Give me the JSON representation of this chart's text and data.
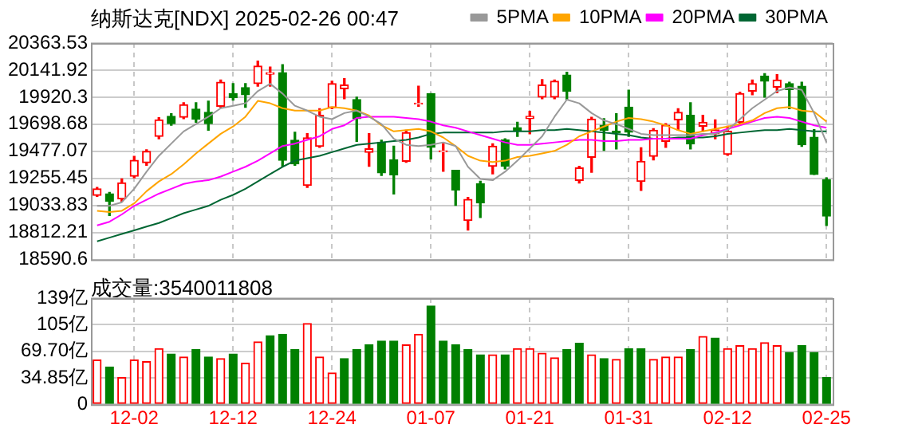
{
  "chart_data": [
    {
      "type": "candlestick",
      "title": "纳斯达克[NDX] 2025-02-26 00:47",
      "categories": [
        null,
        null,
        null,
        null,
        null,
        null,
        null,
        null,
        null,
        null,
        null,
        null,
        null,
        null,
        null,
        null,
        null,
        null,
        null,
        null,
        null,
        null,
        null,
        null,
        null,
        null,
        null,
        null,
        null,
        null,
        null,
        null,
        null,
        null,
        null,
        null,
        null,
        null,
        null,
        null,
        null,
        null,
        null,
        null,
        null,
        null,
        null,
        null,
        null,
        null,
        null,
        null,
        null,
        null,
        null,
        null,
        null,
        null,
        null,
        null
      ],
      "ohlc": [
        [
          19116,
          19181,
          19108,
          19169
        ],
        [
          19128,
          19140,
          18952,
          19067
        ],
        [
          19087,
          19251,
          19067,
          19218
        ],
        [
          19272,
          19436,
          19259,
          19403
        ],
        [
          19383,
          19489,
          19362,
          19477
        ],
        [
          19600,
          19752,
          19579,
          19735
        ],
        [
          19764,
          19785,
          19690,
          19703
        ],
        [
          19756,
          19875,
          19744,
          19859
        ],
        [
          19822,
          19875,
          19715,
          19740
        ],
        [
          19797,
          19887,
          19649,
          19703
        ],
        [
          19846,
          20060,
          19838,
          20043
        ],
        [
          19949,
          20031,
          19896,
          19916
        ],
        [
          19998,
          20031,
          19838,
          19941
        ],
        [
          20031,
          20216,
          20010,
          20175
        ],
        [
          20109,
          20166,
          20010,
          20121
        ],
        [
          20121,
          20187,
          19354,
          19403
        ],
        [
          19567,
          19633,
          19362,
          19374
        ],
        [
          19198,
          19621,
          19181,
          19588
        ],
        [
          19518,
          19826,
          19510,
          19772
        ],
        [
          19834,
          20051,
          19826,
          20031
        ],
        [
          19990,
          20072,
          19908,
          20019
        ],
        [
          19900,
          19920,
          19559,
          19744
        ],
        [
          19469,
          19621,
          19354,
          19497
        ],
        [
          19551,
          19567,
          19280,
          19300
        ],
        [
          19407,
          19518,
          19128,
          19284
        ],
        [
          19395,
          19649,
          19387,
          19629
        ],
        [
          19863,
          20010,
          19846,
          19871
        ],
        [
          19949,
          19949,
          19415,
          19510
        ],
        [
          19473,
          19538,
          19313,
          19481
        ],
        [
          19321,
          19321,
          19034,
          19161
        ],
        [
          18911,
          19099,
          18833,
          19083
        ],
        [
          19210,
          19231,
          18935,
          19054
        ],
        [
          19354,
          19538,
          19292,
          19518
        ],
        [
          19571,
          19579,
          19333,
          19354
        ],
        [
          19670,
          19715,
          19600,
          19641
        ],
        [
          19744,
          19805,
          19621,
          19764
        ],
        [
          19920,
          20064,
          19908,
          20019
        ],
        [
          19920,
          20060,
          19908,
          20051
        ],
        [
          20101,
          20125,
          19900,
          19970
        ],
        [
          19239,
          19354,
          19218,
          19341
        ],
        [
          19428,
          19756,
          19305,
          19740
        ],
        [
          19690,
          19744,
          19485,
          19649
        ],
        [
          19641,
          19785,
          19497,
          19629
        ],
        [
          19838,
          19978,
          19600,
          19633
        ],
        [
          19231,
          19506,
          19157,
          19395
        ],
        [
          19436,
          19662,
          19407,
          19649
        ],
        [
          19559,
          19703,
          19510,
          19690
        ],
        [
          19735,
          19826,
          19649,
          19797
        ],
        [
          19772,
          19875,
          19497,
          19538
        ],
        [
          19682,
          19772,
          19641,
          19715
        ],
        [
          19621,
          19735,
          19579,
          19653
        ],
        [
          19452,
          19682,
          19444,
          19641
        ],
        [
          19715,
          19961,
          19703,
          19949
        ],
        [
          19970,
          20060,
          19941,
          20031
        ],
        [
          20093,
          20113,
          19920,
          20051
        ],
        [
          20002,
          20105,
          19957,
          20060
        ],
        [
          20031,
          20043,
          19826,
          19982
        ],
        [
          20010,
          20043,
          19518,
          19530
        ],
        [
          19592,
          19654,
          19288,
          19288
        ],
        [
          19243,
          19259,
          18870,
          18946
        ]
      ],
      "colors": [
        "#ff0000",
        "#008000",
        "#ff0000",
        "#ff0000",
        "#ff0000",
        "#ff0000",
        "#008000",
        "#ff0000",
        "#008000",
        "#008000",
        "#ff0000",
        "#008000",
        "#008000",
        "#ff0000",
        "#ff0000",
        "#008000",
        "#008000",
        "#ff0000",
        "#ff0000",
        "#ff0000",
        "#ff0000",
        "#008000",
        "#ff0000",
        "#008000",
        "#008000",
        "#ff0000",
        "#ff0000",
        "#008000",
        "#ff0000",
        "#008000",
        "#ff0000",
        "#008000",
        "#ff0000",
        "#008000",
        "#008000",
        "#ff0000",
        "#ff0000",
        "#ff0000",
        "#008000",
        "#ff0000",
        "#ff0000",
        "#008000",
        "#008000",
        "#008000",
        "#ff0000",
        "#ff0000",
        "#ff0000",
        "#ff0000",
        "#008000",
        "#ff0000",
        "#ff0000",
        "#ff0000",
        "#ff0000",
        "#ff0000",
        "#008000",
        "#ff0000",
        "#008000",
        "#008000",
        "#008000",
        "#008000"
      ],
      "series": [
        {
          "type": "line",
          "name": "5PMA",
          "color": "#999999",
          "values": [
            19030,
            19030,
            19060,
            19170,
            19310,
            19440,
            19540,
            19640,
            19700,
            19760,
            19830,
            19850,
            19870,
            19970,
            20030,
            19950,
            19850,
            19810,
            19760,
            19740,
            19790,
            19810,
            19760,
            19700,
            19580,
            19530,
            19520,
            19530,
            19550,
            19520,
            19350,
            19250,
            19240,
            19310,
            19400,
            19500,
            19600,
            19760,
            19900,
            19870,
            19790,
            19730,
            19700,
            19660,
            19620,
            19610,
            19610,
            19610,
            19610,
            19620,
            19620,
            19650,
            19740,
            19830,
            19900,
            19970,
            20000,
            19980,
            19790,
            19550
          ]
        },
        {
          "type": "line",
          "name": "10PMA",
          "color": "#ffa500",
          "values": [
            18990,
            18980,
            18990,
            19050,
            19150,
            19230,
            19290,
            19370,
            19460,
            19540,
            19620,
            19680,
            19760,
            19890,
            19870,
            19830,
            19810,
            19810,
            19810,
            19840,
            19830,
            19810,
            19770,
            19690,
            19640,
            19650,
            19660,
            19640,
            19590,
            19520,
            19440,
            19400,
            19390,
            19400,
            19430,
            19440,
            19460,
            19480,
            19530,
            19600,
            19640,
            19680,
            19720,
            19750,
            19740,
            19720,
            19690,
            19650,
            19620,
            19640,
            19660,
            19680,
            19700,
            19730,
            19790,
            19830,
            19840,
            19810,
            19800,
            19720
          ]
        },
        {
          "type": "line",
          "name": "20PMA",
          "color": "#ff00ff",
          "values": [
            18870,
            18900,
            18960,
            19030,
            19080,
            19130,
            19170,
            19210,
            19230,
            19240,
            19270,
            19310,
            19350,
            19400,
            19460,
            19520,
            19540,
            19570,
            19600,
            19660,
            19690,
            19750,
            19760,
            19760,
            19760,
            19750,
            19740,
            19720,
            19690,
            19670,
            19640,
            19610,
            19580,
            19550,
            19530,
            19530,
            19540,
            19550,
            19560,
            19570,
            19570,
            19560,
            19560,
            19570,
            19570,
            19580,
            19580,
            19580,
            19580,
            19610,
            19630,
            19660,
            19690,
            19720,
            19750,
            19760,
            19750,
            19720,
            19690,
            19670
          ]
        },
        {
          "type": "line",
          "name": "30PMA",
          "color": "#006633",
          "values": [
            18740,
            18770,
            18800,
            18830,
            18860,
            18890,
            18930,
            18970,
            19000,
            19030,
            19080,
            19120,
            19170,
            19230,
            19290,
            19350,
            19400,
            19420,
            19440,
            19470,
            19500,
            19530,
            19540,
            19550,
            19560,
            19570,
            19590,
            19620,
            19630,
            19630,
            19630,
            19630,
            19630,
            19640,
            19640,
            19640,
            19650,
            19650,
            19660,
            19650,
            19640,
            19630,
            19620,
            19610,
            19590,
            19580,
            19580,
            19590,
            19590,
            19590,
            19600,
            19620,
            19630,
            19640,
            19650,
            19650,
            19660,
            19650,
            19640,
            19640
          ]
        }
      ],
      "ylim": [
        18590.6,
        20363.53
      ],
      "yticks": [
        18590.6,
        18812.21,
        19033.83,
        19255.45,
        19477.07,
        19698.68,
        19920.3,
        20141.92,
        20363.53
      ],
      "grid": true,
      "legend": "top right",
      "tick_labels": "y"
    },
    {
      "type": "bar",
      "title": "成交量:3540011808",
      "categories": [
        null,
        null,
        null,
        "12-02",
        null,
        null,
        null,
        null,
        null,
        null,
        null,
        "12-12",
        null,
        null,
        null,
        null,
        null,
        null,
        null,
        "12-24",
        null,
        null,
        null,
        null,
        null,
        null,
        null,
        "01-07",
        null,
        null,
        null,
        null,
        null,
        null,
        null,
        "01-21",
        null,
        null,
        null,
        null,
        null,
        null,
        null,
        "01-31",
        null,
        null,
        null,
        null,
        null,
        null,
        null,
        "02-12",
        null,
        null,
        null,
        null,
        null,
        null,
        null,
        "02-25"
      ],
      "values": [
        58,
        49,
        35,
        58,
        56,
        73,
        66,
        62,
        72,
        62,
        60,
        66,
        54,
        82,
        90,
        92,
        72,
        106,
        62,
        41,
        60,
        72,
        78,
        83,
        83,
        78,
        92,
        129,
        83,
        78,
        72,
        65,
        65,
        65,
        73,
        73,
        67,
        61,
        72,
        80,
        65,
        60,
        59,
        73,
        73,
        59,
        62,
        62,
        72,
        89,
        87,
        73,
        77,
        73,
        81,
        77,
        68,
        77,
        68,
        35
      ],
      "colors": [
        "#ff0000",
        "#008000",
        "#ff0000",
        "#ff0000",
        "#ff0000",
        "#ff0000",
        "#008000",
        "#ff0000",
        "#008000",
        "#008000",
        "#ff0000",
        "#008000",
        "#ff0000",
        "#ff0000",
        "#008000",
        "#008000",
        "#008000",
        "#ff0000",
        "#ff0000",
        "#ff0000",
        "#008000",
        "#008000",
        "#008000",
        "#008000",
        "#008000",
        "#ff0000",
        "#ff0000",
        "#008000",
        "#008000",
        "#008000",
        "#008000",
        "#008000",
        "#ff0000",
        "#008000",
        "#ff0000",
        "#ff0000",
        "#ff0000",
        "#ff0000",
        "#008000",
        "#008000",
        "#ff0000",
        "#008000",
        "#ff0000",
        "#008000",
        "#008000",
        "#ff0000",
        "#ff0000",
        "#ff0000",
        "#008000",
        "#ff0000",
        "#008000",
        "#ff0000",
        "#ff0000",
        "#ff0000",
        "#ff0000",
        "#ff0000",
        "#008000",
        "#008000",
        "#008000",
        "#008000"
      ],
      "ylim": [
        0,
        139.4
      ],
      "yticks": [
        0,
        {
          "value": 34.85,
          "label": "34.85亿"
        },
        {
          "value": 69.7,
          "label": "69.70亿"
        },
        {
          "value": 104.55,
          "label": "105亿"
        },
        {
          "value": 139.4,
          "label": "139亿"
        }
      ],
      "grid": true
    }
  ]
}
